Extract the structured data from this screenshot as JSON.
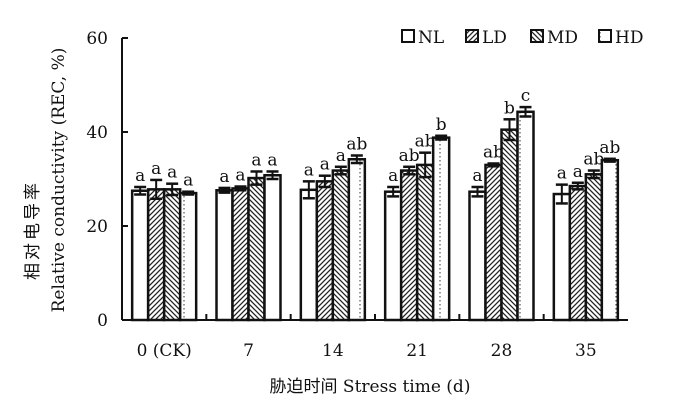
{
  "chart_data": {
    "type": "bar",
    "xlabel": "胁迫时间 Stress time (d)",
    "ylabel_line1": "相对电导率",
    "ylabel_line2": "Relative conductivity (REC, %)",
    "ylim": [
      0,
      60
    ],
    "yticks": [
      0,
      20,
      40,
      60
    ],
    "categories": [
      "0 (CK)",
      "7",
      "14",
      "21",
      "28",
      "35"
    ],
    "legend_position": "top-right",
    "series": [
      {
        "name": "NL",
        "pattern": "blank",
        "values": [
          27.5,
          27.6,
          27.7,
          27.3,
          27.3,
          26.8
        ],
        "errors": [
          0.8,
          0.5,
          1.8,
          1.0,
          1.0,
          2.0
        ],
        "letters": [
          "a",
          "a",
          "a",
          "a",
          "a",
          "a"
        ]
      },
      {
        "name": "LD",
        "pattern": "diagonal",
        "values": [
          27.8,
          28.0,
          29.5,
          31.8,
          33.0,
          28.5
        ],
        "errors": [
          2.0,
          0.4,
          1.2,
          0.8,
          0.3,
          0.7
        ],
        "letters": [
          "a",
          "a",
          "a",
          "ab",
          "ab",
          "a"
        ]
      },
      {
        "name": "MD",
        "pattern": "back-diagonal",
        "values": [
          27.8,
          30.2,
          31.8,
          33.0,
          40.5,
          31.0
        ],
        "errors": [
          1.2,
          1.4,
          0.8,
          2.6,
          2.2,
          0.8
        ],
        "letters": [
          "a",
          "a",
          "a",
          "ab",
          "b",
          "ab"
        ]
      },
      {
        "name": "HD",
        "pattern": "dotted",
        "values": [
          27.0,
          30.8,
          34.2,
          38.8,
          44.3,
          34.0
        ],
        "errors": [
          0.3,
          0.8,
          0.8,
          0.4,
          1.0,
          0.3
        ],
        "letters": [
          "a",
          "a",
          "ab",
          "b",
          "c",
          "ab"
        ]
      }
    ]
  }
}
